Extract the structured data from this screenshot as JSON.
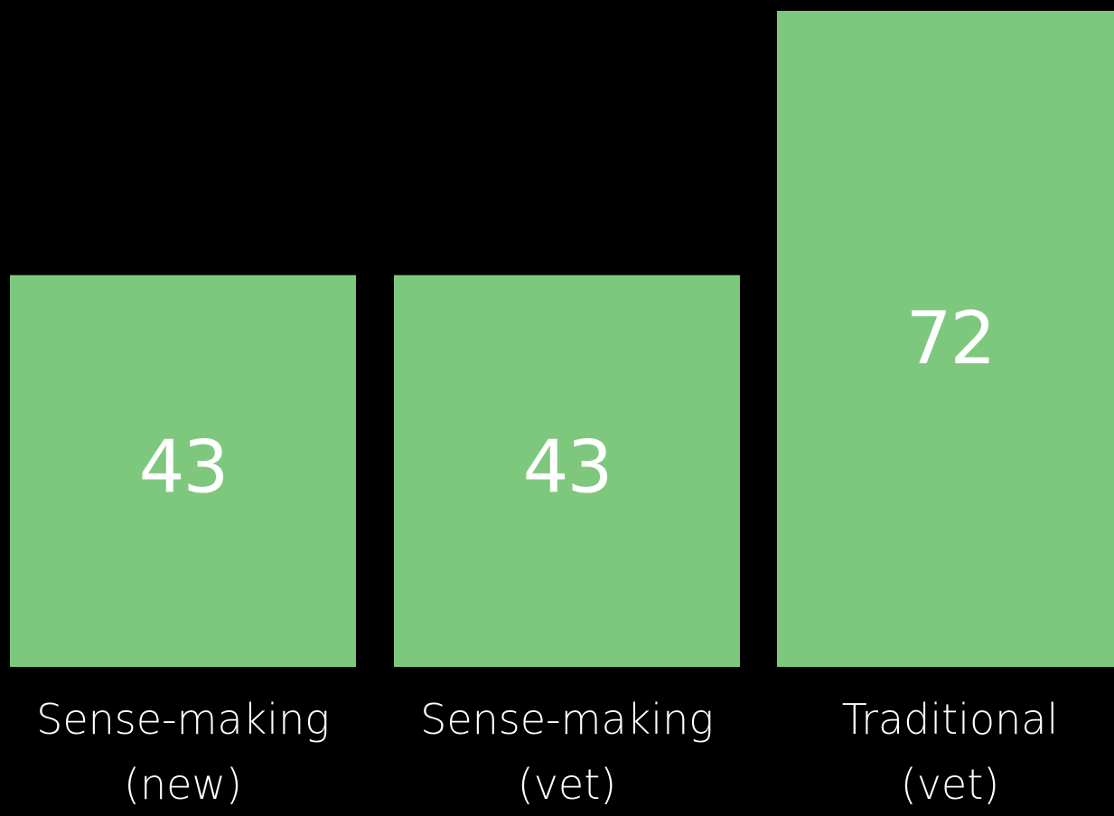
{
  "chart_data": {
    "type": "bar",
    "categories": [
      [
        "Sense-making",
        "(new)"
      ],
      [
        "Sense-making",
        "(vet)"
      ],
      [
        "Traditional",
        "(vet)"
      ]
    ],
    "values": [
      43,
      43,
      72
    ],
    "data_labels": [
      "43",
      "43",
      "72"
    ],
    "title": "",
    "xlabel": "",
    "ylabel": "",
    "ylim": [
      0,
      72
    ],
    "grid": false,
    "legend": "none",
    "colors": {
      "bar": "#7ec87e",
      "background": "#000000",
      "text": "#ffffff"
    }
  }
}
